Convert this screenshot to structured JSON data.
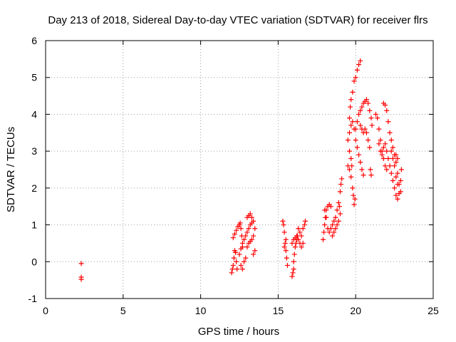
{
  "chart_data": {
    "type": "scatter",
    "title": "Day 213 of 2018, Sidereal Day-to-day VTEC variation (SDTVAR) for receiver flrs",
    "xlabel": "GPS time / hours",
    "ylabel": "SDTVAR / TECUs",
    "xlim": [
      0,
      25
    ],
    "ylim": [
      -1,
      6
    ],
    "xticks": [
      0,
      5,
      10,
      15,
      20,
      25
    ],
    "yticks": [
      -1,
      0,
      1,
      2,
      3,
      4,
      5,
      6
    ],
    "grid": true,
    "marker": "plus",
    "color": "#ff0000",
    "series": [
      {
        "name": "SDTVAR",
        "points": [
          [
            2.3,
            -0.05
          ],
          [
            2.3,
            -0.42
          ],
          [
            2.3,
            -0.48
          ],
          [
            12.0,
            -0.3
          ],
          [
            12.05,
            -0.2
          ],
          [
            12.1,
            -0.1
          ],
          [
            12.15,
            0.1
          ],
          [
            12.2,
            0.3
          ],
          [
            12.25,
            0.25
          ],
          [
            12.3,
            0.0
          ],
          [
            12.35,
            -0.2
          ],
          [
            12.1,
            0.65
          ],
          [
            12.2,
            0.75
          ],
          [
            12.3,
            0.85
          ],
          [
            12.4,
            0.95
          ],
          [
            12.5,
            1.0
          ],
          [
            12.55,
            1.05
          ],
          [
            12.6,
            0.9
          ],
          [
            12.65,
            0.7
          ],
          [
            12.5,
            0.2
          ],
          [
            12.6,
            0.35
          ],
          [
            12.7,
            0.5
          ],
          [
            12.8,
            0.6
          ],
          [
            12.9,
            0.7
          ],
          [
            13.0,
            0.8
          ],
          [
            13.1,
            0.9
          ],
          [
            13.2,
            1.0
          ],
          [
            13.3,
            1.05
          ],
          [
            12.6,
            -0.1
          ],
          [
            12.7,
            -0.2
          ],
          [
            12.8,
            0.0
          ],
          [
            12.9,
            0.1
          ],
          [
            13.0,
            1.2
          ],
          [
            13.1,
            1.25
          ],
          [
            13.2,
            1.3
          ],
          [
            13.3,
            1.2
          ],
          [
            13.4,
            1.1
          ],
          [
            13.0,
            0.4
          ],
          [
            13.1,
            0.5
          ],
          [
            13.2,
            0.55
          ],
          [
            13.3,
            0.6
          ],
          [
            13.4,
            0.7
          ],
          [
            13.5,
            0.9
          ],
          [
            13.5,
            0.3
          ],
          [
            13.4,
            0.2
          ],
          [
            12.7,
            0.4
          ],
          [
            15.3,
            1.1
          ],
          [
            15.35,
            1.0
          ],
          [
            15.4,
            0.8
          ],
          [
            15.45,
            0.5
          ],
          [
            15.5,
            0.3
          ],
          [
            15.55,
            0.1
          ],
          [
            15.6,
            -0.1
          ],
          [
            15.4,
            0.4
          ],
          [
            15.5,
            0.6
          ],
          [
            15.9,
            -0.4
          ],
          [
            15.95,
            -0.3
          ],
          [
            16.0,
            -0.2
          ],
          [
            16.0,
            0.0
          ],
          [
            16.05,
            0.2
          ],
          [
            16.1,
            0.4
          ],
          [
            16.15,
            0.5
          ],
          [
            16.2,
            0.6
          ],
          [
            16.25,
            0.7
          ],
          [
            15.9,
            0.5
          ],
          [
            16.0,
            0.6
          ],
          [
            16.1,
            0.65
          ],
          [
            16.2,
            0.7
          ],
          [
            16.3,
            0.6
          ],
          [
            16.4,
            0.5
          ],
          [
            16.5,
            0.7
          ],
          [
            16.6,
            0.9
          ],
          [
            16.7,
            1.0
          ],
          [
            16.75,
            1.1
          ],
          [
            16.3,
            0.9
          ],
          [
            16.4,
            0.8
          ],
          [
            16.5,
            0.4
          ],
          [
            16.6,
            0.5
          ],
          [
            17.9,
            0.6
          ],
          [
            17.95,
            0.8
          ],
          [
            18.0,
            1.0
          ],
          [
            18.05,
            1.2
          ],
          [
            18.1,
            1.4
          ],
          [
            18.2,
            1.5
          ],
          [
            18.3,
            1.55
          ],
          [
            18.4,
            1.5
          ],
          [
            18.0,
            1.4
          ],
          [
            18.1,
            1.2
          ],
          [
            18.2,
            0.9
          ],
          [
            18.3,
            0.8
          ],
          [
            18.4,
            0.9
          ],
          [
            18.5,
            1.0
          ],
          [
            18.6,
            1.1
          ],
          [
            18.7,
            1.2
          ],
          [
            18.8,
            1.4
          ],
          [
            18.5,
            0.7
          ],
          [
            18.6,
            0.8
          ],
          [
            18.7,
            0.9
          ],
          [
            18.8,
            1.0
          ],
          [
            18.9,
            1.1
          ],
          [
            18.9,
            1.6
          ],
          [
            19.0,
            1.9
          ],
          [
            19.05,
            2.1
          ],
          [
            19.1,
            2.25
          ],
          [
            19.0,
            1.3
          ],
          [
            18.95,
            1.5
          ],
          [
            19.5,
            2.6
          ],
          [
            19.6,
            2.5
          ],
          [
            19.7,
            2.3
          ],
          [
            19.8,
            2.0
          ],
          [
            19.85,
            1.8
          ],
          [
            19.9,
            1.55
          ],
          [
            19.95,
            1.7
          ],
          [
            19.6,
            3.9
          ],
          [
            19.65,
            4.2
          ],
          [
            19.7,
            4.4
          ],
          [
            19.8,
            4.6
          ],
          [
            19.9,
            4.9
          ],
          [
            20.0,
            5.0
          ],
          [
            20.1,
            5.2
          ],
          [
            20.2,
            5.35
          ],
          [
            20.3,
            5.45
          ],
          [
            19.5,
            3.3
          ],
          [
            19.6,
            3.5
          ],
          [
            19.7,
            3.7
          ],
          [
            19.8,
            3.8
          ],
          [
            19.9,
            3.6
          ],
          [
            20.0,
            3.3
          ],
          [
            20.1,
            3.1
          ],
          [
            20.2,
            2.9
          ],
          [
            20.3,
            2.7
          ],
          [
            20.4,
            2.5
          ],
          [
            20.5,
            2.35
          ],
          [
            20.3,
            3.7
          ],
          [
            20.4,
            3.6
          ],
          [
            20.5,
            3.5
          ],
          [
            20.6,
            3.6
          ],
          [
            20.7,
            3.5
          ],
          [
            20.8,
            3.3
          ],
          [
            20.9,
            3.1
          ],
          [
            20.95,
            2.5
          ],
          [
            21.0,
            2.35
          ],
          [
            20.2,
            4.0
          ],
          [
            20.3,
            4.1
          ],
          [
            20.4,
            4.2
          ],
          [
            20.5,
            4.3
          ],
          [
            20.6,
            4.35
          ],
          [
            20.7,
            4.4
          ],
          [
            20.8,
            4.3
          ],
          [
            20.9,
            4.1
          ],
          [
            21.0,
            3.9
          ],
          [
            21.05,
            3.7
          ],
          [
            19.6,
            3.0
          ],
          [
            19.7,
            2.8
          ],
          [
            19.75,
            2.6
          ],
          [
            20.0,
            3.6
          ],
          [
            20.1,
            3.8
          ],
          [
            21.3,
            4.0
          ],
          [
            21.4,
            3.9
          ],
          [
            21.5,
            3.6
          ],
          [
            21.6,
            3.3
          ],
          [
            21.7,
            3.0
          ],
          [
            21.8,
            2.8
          ],
          [
            21.9,
            2.6
          ],
          [
            22.0,
            2.5
          ],
          [
            21.8,
            4.3
          ],
          [
            21.9,
            4.25
          ],
          [
            22.0,
            4.1
          ],
          [
            22.1,
            3.8
          ],
          [
            22.2,
            3.5
          ],
          [
            22.3,
            3.3
          ],
          [
            22.4,
            3.1
          ],
          [
            22.5,
            2.9
          ],
          [
            22.6,
            2.7
          ],
          [
            22.7,
            2.4
          ],
          [
            22.8,
            2.1
          ],
          [
            22.9,
            1.9
          ],
          [
            21.5,
            3.2
          ],
          [
            21.6,
            3.0
          ],
          [
            21.7,
            2.9
          ],
          [
            21.8,
            3.1
          ],
          [
            21.9,
            3.2
          ],
          [
            22.0,
            3.0
          ],
          [
            22.1,
            2.8
          ],
          [
            22.2,
            2.6
          ],
          [
            22.3,
            2.4
          ],
          [
            22.4,
            2.2
          ],
          [
            22.5,
            2.0
          ],
          [
            22.6,
            1.8
          ],
          [
            22.7,
            1.7
          ],
          [
            22.3,
            3.0
          ],
          [
            22.4,
            2.8
          ],
          [
            22.5,
            2.6
          ],
          [
            22.6,
            2.3
          ],
          [
            22.7,
            2.1
          ],
          [
            22.8,
            1.85
          ],
          [
            22.9,
            2.2
          ],
          [
            22.95,
            2.5
          ],
          [
            22.6,
            2.9
          ],
          [
            22.7,
            2.8
          ]
        ]
      }
    ]
  }
}
